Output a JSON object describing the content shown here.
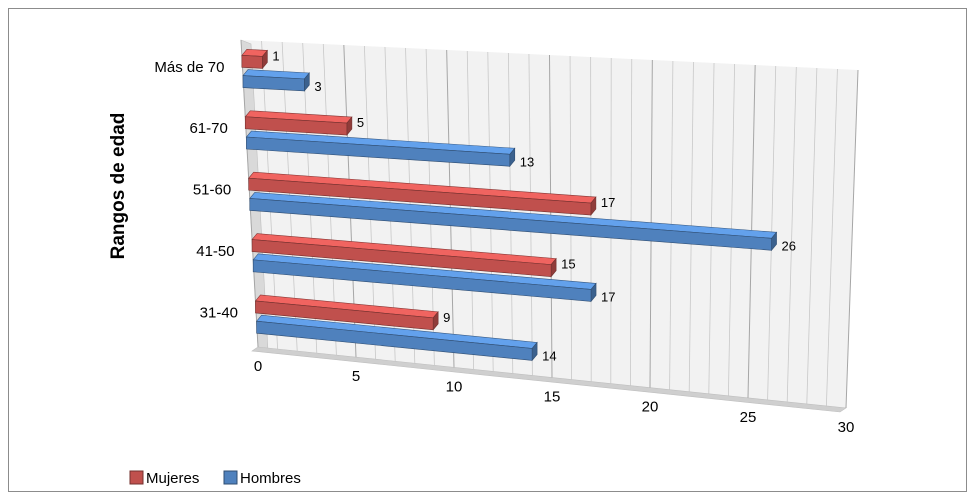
{
  "chart_data": {
    "type": "bar",
    "orientation": "horizontal",
    "three_d": true,
    "categories": [
      "31-40",
      "41-50",
      "51-60",
      "61-70",
      "Más de 70"
    ],
    "series": [
      {
        "name": "Mujeres",
        "values": [
          9,
          15,
          17,
          5,
          1
        ],
        "color": "#c0504d"
      },
      {
        "name": "Hombres",
        "values": [
          14,
          17,
          26,
          13,
          3
        ],
        "color": "#4f81bd"
      }
    ],
    "ylabel": "Rangos de edad",
    "xlabel": "",
    "xlim": [
      0,
      30
    ],
    "x_ticks": [
      "0",
      "5",
      "10",
      "15",
      "20",
      "25",
      "30"
    ],
    "grid": true,
    "legend_position": "bottom-left"
  }
}
